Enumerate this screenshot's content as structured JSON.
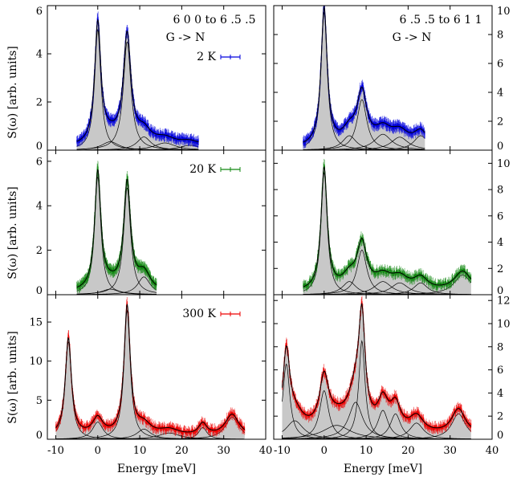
{
  "figure": {
    "ylabel": "S(ω) [arb. units]",
    "xlabel": "Energy [meV]"
  },
  "chart_data": [
    {
      "type": "line",
      "panel": "top-left",
      "title": "6 0 0 to 6 .5 .5",
      "subtitle": "G -> N",
      "legend": "2 K",
      "color": "#0000dd",
      "xlim": [
        -12,
        40
      ],
      "ylim": [
        0,
        6
      ],
      "xticks": [
        -10,
        0,
        10,
        20,
        30,
        40
      ],
      "yticks": [
        0,
        2,
        4,
        6
      ],
      "yaxis_side": "left",
      "data_range": [
        -5,
        24
      ],
      "baseline": 0.12,
      "peaks": [
        {
          "center": 0,
          "amp": 5.0,
          "width": 0.9
        },
        {
          "center": 7,
          "amp": 4.5,
          "width": 1.1
        },
        {
          "center": 3,
          "amp": 0.35,
          "width": 2.5
        },
        {
          "center": 11,
          "amp": 0.55,
          "width": 2.0
        },
        {
          "center": 16,
          "amp": 0.3,
          "width": 3.0
        },
        {
          "center": 22,
          "amp": 0.2,
          "width": 3.0
        }
      ]
    },
    {
      "type": "line",
      "panel": "top-right",
      "title": "6 .5 .5 to 6 1 1",
      "subtitle": "G -> N",
      "legend": "",
      "color": "#0000dd",
      "xlim": [
        -12,
        40
      ],
      "ylim": [
        0,
        10
      ],
      "xticks": [
        -10,
        0,
        10,
        20,
        30,
        40
      ],
      "yticks": [
        0,
        2,
        4,
        6,
        8,
        10
      ],
      "yaxis_side": "right",
      "data_range": [
        -5,
        24
      ],
      "baseline": 0.15,
      "peaks": [
        {
          "center": 0,
          "amp": 9.5,
          "width": 0.9
        },
        {
          "center": 9,
          "amp": 3.5,
          "width": 1.4
        },
        {
          "center": 6,
          "amp": 1.0,
          "width": 2.0
        },
        {
          "center": 14,
          "amp": 1.1,
          "width": 2.5
        },
        {
          "center": 18,
          "amp": 0.9,
          "width": 2.5
        },
        {
          "center": 23,
          "amp": 1.0,
          "width": 2.0
        }
      ]
    },
    {
      "type": "line",
      "panel": "middle-left",
      "title": "",
      "subtitle": "",
      "legend": "20 K",
      "color": "#118811",
      "xlim": [
        -12,
        40
      ],
      "ylim": [
        0,
        6.5
      ],
      "xticks": [
        -10,
        0,
        10,
        20,
        30,
        40
      ],
      "yticks": [
        0,
        2,
        4,
        6
      ],
      "yaxis_side": "left",
      "data_range": [
        -5,
        14
      ],
      "baseline": 0.1,
      "peaks": [
        {
          "center": 0,
          "amp": 5.3,
          "width": 0.9
        },
        {
          "center": 7,
          "amp": 4.8,
          "width": 1.0
        },
        {
          "center": 3,
          "amp": 0.25,
          "width": 2.5
        },
        {
          "center": 11,
          "amp": 0.8,
          "width": 1.8
        }
      ]
    },
    {
      "type": "line",
      "panel": "middle-right",
      "title": "",
      "subtitle": "",
      "legend": "",
      "color": "#118811",
      "xlim": [
        -12,
        40
      ],
      "ylim": [
        0,
        11
      ],
      "xticks": [
        -10,
        0,
        10,
        20,
        30,
        40
      ],
      "yticks": [
        0,
        2,
        4,
        6,
        8,
        10
      ],
      "yaxis_side": "right",
      "data_range": [
        -5,
        35
      ],
      "baseline": 0.2,
      "peaks": [
        {
          "center": 0,
          "amp": 9.3,
          "width": 0.9
        },
        {
          "center": 9,
          "amp": 3.4,
          "width": 1.4
        },
        {
          "center": 6,
          "amp": 1.0,
          "width": 2.0
        },
        {
          "center": 14,
          "amp": 1.0,
          "width": 2.5
        },
        {
          "center": 18,
          "amp": 0.9,
          "width": 2.5
        },
        {
          "center": 23,
          "amp": 0.9,
          "width": 2.0
        },
        {
          "center": 33,
          "amp": 1.5,
          "width": 2.5
        }
      ]
    },
    {
      "type": "line",
      "panel": "bottom-left",
      "title": "",
      "subtitle": "",
      "legend": "300 K",
      "color": "#ee0000",
      "xlim": [
        -12,
        40
      ],
      "ylim": [
        0,
        18.5
      ],
      "xticks": [
        -10,
        0,
        10,
        20,
        30,
        40
      ],
      "yticks": [
        0,
        5,
        10,
        15
      ],
      "yaxis_side": "left",
      "data_range": [
        -10,
        35
      ],
      "baseline": 0.3,
      "peaks": [
        {
          "center": -7,
          "amp": 12.5,
          "width": 0.9
        },
        {
          "center": 0,
          "amp": 2.2,
          "width": 1.5
        },
        {
          "center": 7,
          "amp": 16.5,
          "width": 0.9
        },
        {
          "center": 11,
          "amp": 1.3,
          "width": 2.0
        },
        {
          "center": 17,
          "amp": 0.8,
          "width": 3.0
        },
        {
          "center": 25,
          "amp": 1.5,
          "width": 1.2
        },
        {
          "center": 32,
          "amp": 2.8,
          "width": 2.0
        }
      ]
    },
    {
      "type": "line",
      "panel": "bottom-right",
      "title": "",
      "subtitle": "",
      "legend": "",
      "color": "#ee0000",
      "xlim": [
        -12,
        40
      ],
      "ylim": [
        0,
        12.5
      ],
      "xticks": [
        -10,
        0,
        10,
        20,
        30,
        40
      ],
      "yticks": [
        0,
        2,
        4,
        6,
        8,
        10,
        12
      ],
      "yaxis_side": "right",
      "data_range": [
        -10,
        35
      ],
      "baseline": 0.3,
      "peaks": [
        {
          "center": -9,
          "amp": 6.5,
          "width": 1.0
        },
        {
          "center": -7,
          "amp": 1.6,
          "width": 2.5
        },
        {
          "center": 0,
          "amp": 4.2,
          "width": 1.3
        },
        {
          "center": 7.5,
          "amp": 3.2,
          "width": 2.0
        },
        {
          "center": 9,
          "amp": 8.5,
          "width": 0.9
        },
        {
          "center": 14,
          "amp": 2.5,
          "width": 1.5
        },
        {
          "center": 17,
          "amp": 2.2,
          "width": 1.5
        },
        {
          "center": 22,
          "amp": 1.4,
          "width": 2.0
        },
        {
          "center": 32,
          "amp": 2.2,
          "width": 2.0
        },
        {
          "center": 3,
          "amp": 1.2,
          "width": 4.0
        }
      ]
    }
  ]
}
